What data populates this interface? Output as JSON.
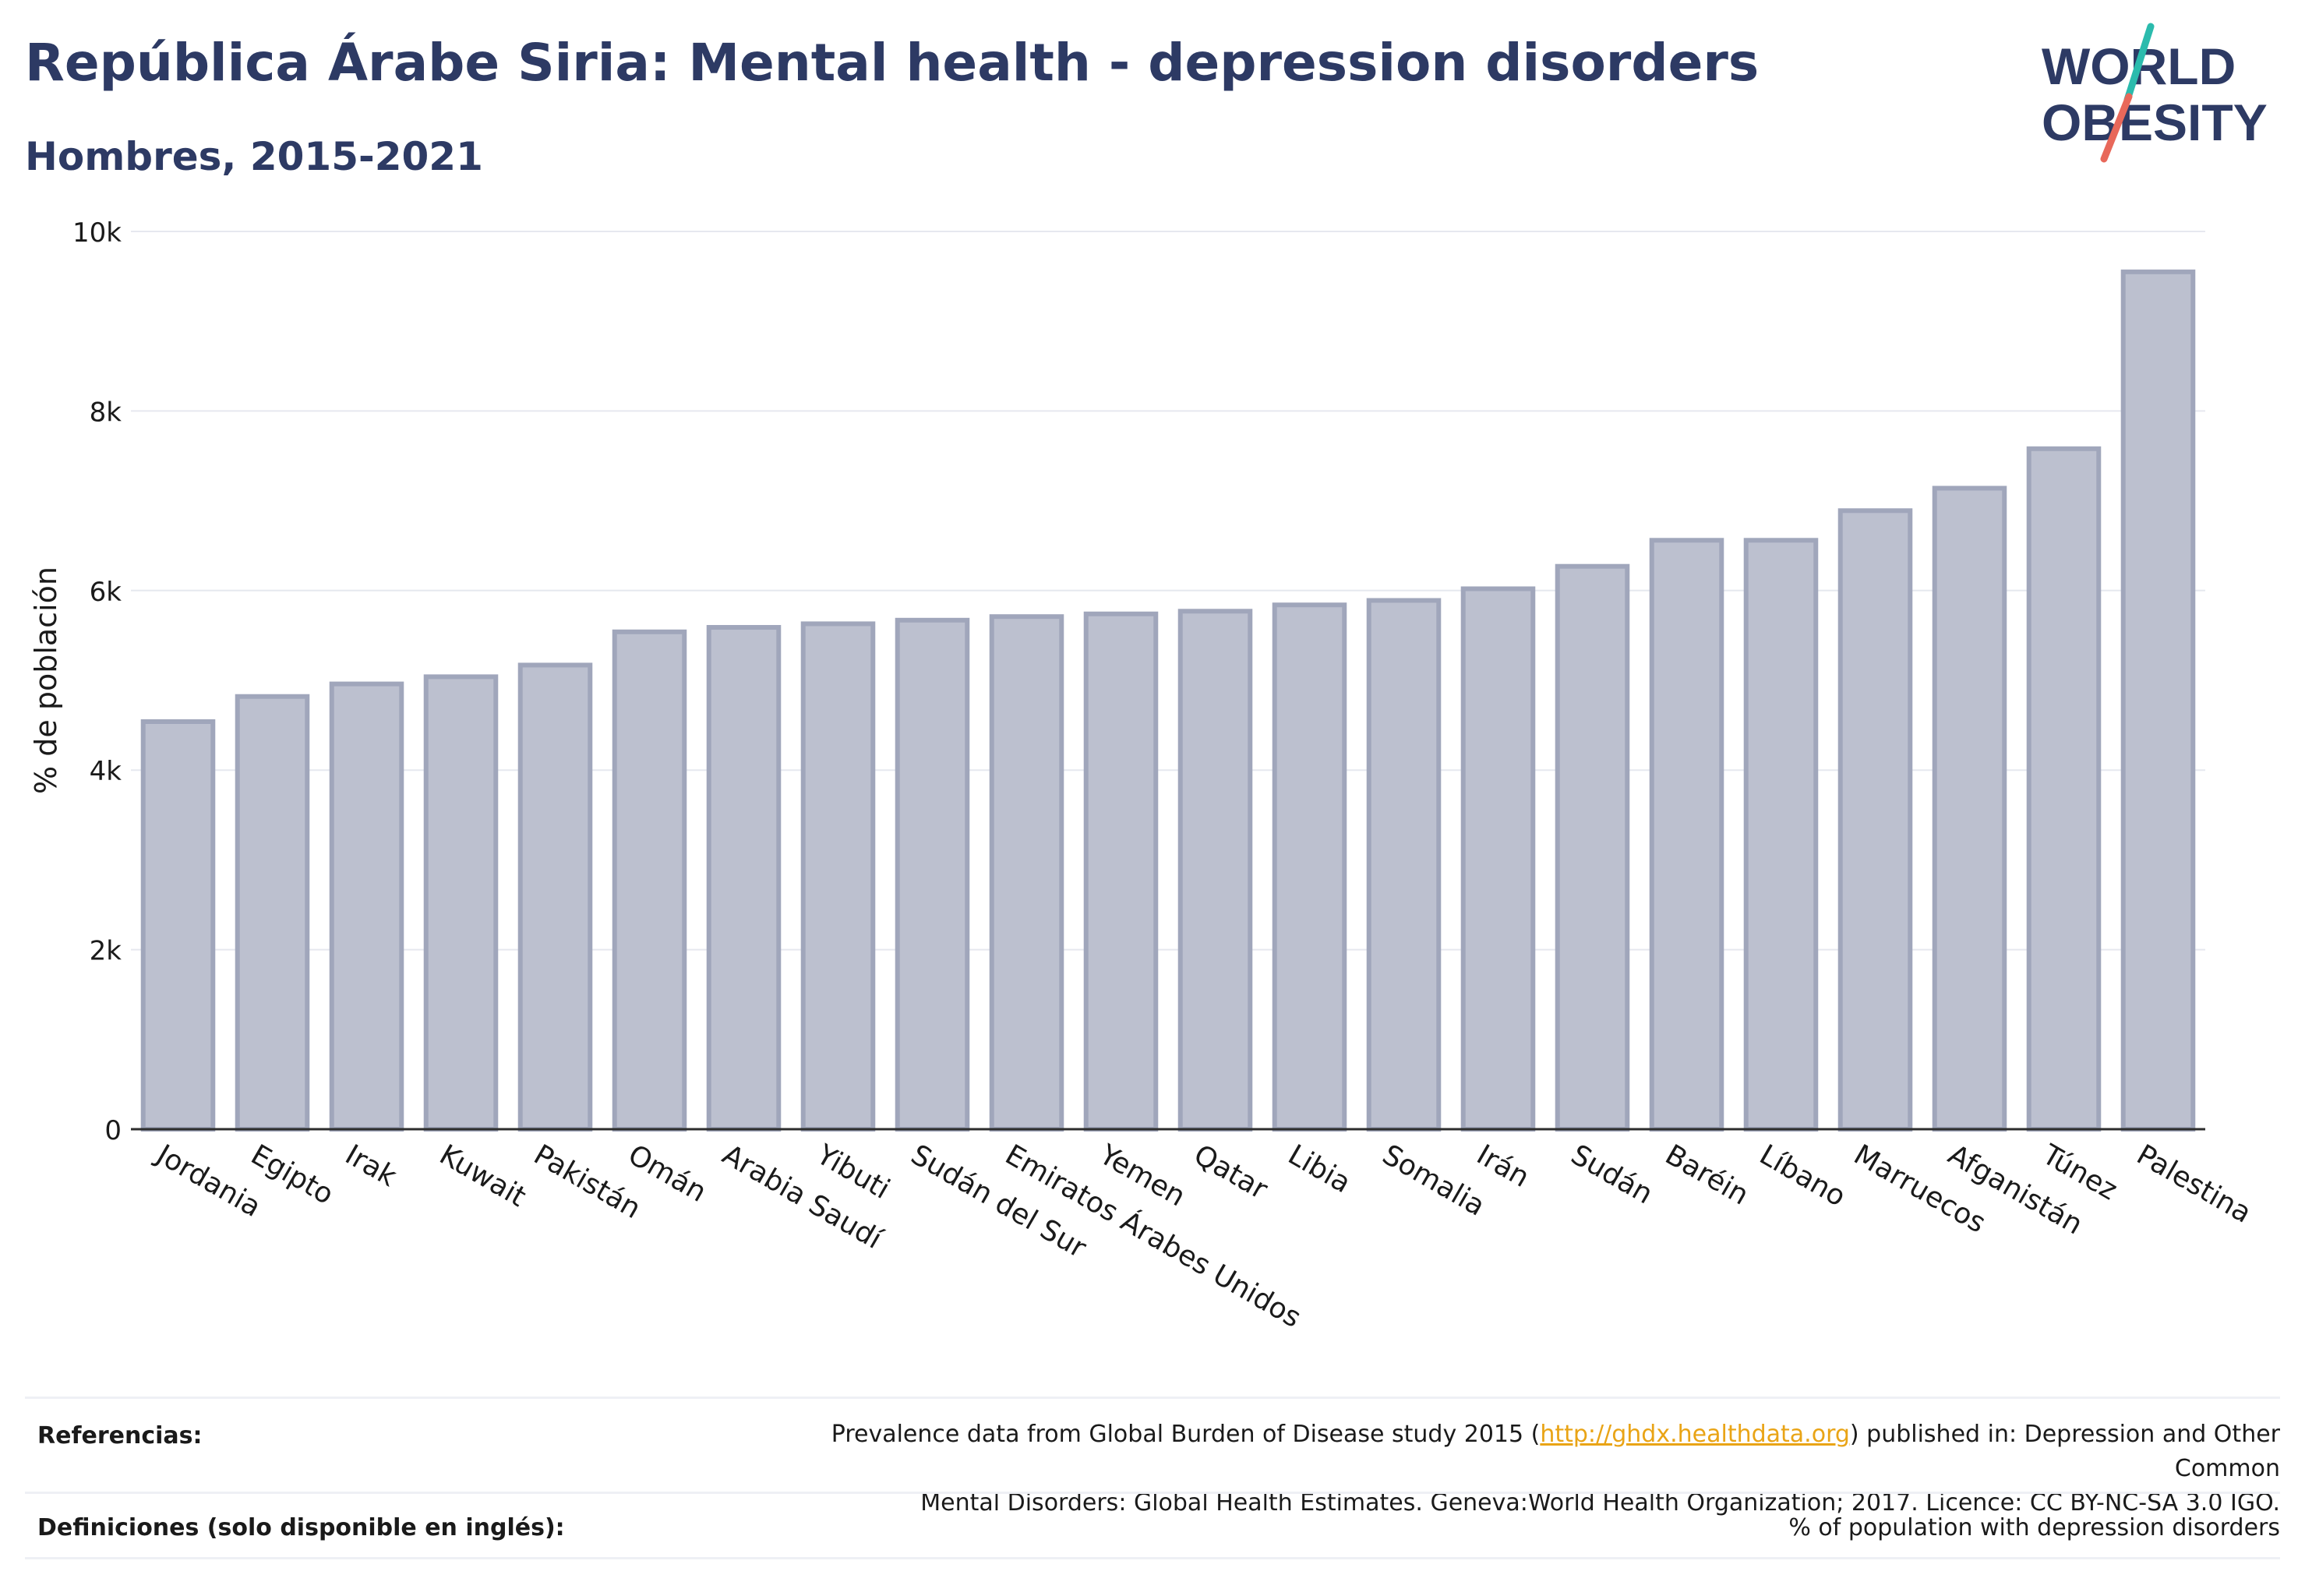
{
  "header": {
    "title": "República Árabe Siria: Mental health - depression disorders",
    "subtitle": "Hombres, 2015-2021"
  },
  "logo": {
    "line1": "WORLD",
    "line2": "OBESITY",
    "text_color": "#2d3a64",
    "slash_top": "#2bbbad",
    "slash_bottom": "#e8685a"
  },
  "chart_data": {
    "type": "bar",
    "categories": [
      "Jordania",
      "Egipto",
      "Irak",
      "Kuwait",
      "Pakistán",
      "Omán",
      "Arabia Saudí",
      "Yibuti",
      "Sudán del Sur",
      "Emiratos Árabes Unidos",
      "Yemen",
      "Qatar",
      "Libia",
      "Somalia",
      "Irán",
      "Sudán",
      "Baréin",
      "Líbano",
      "Marruecos",
      "Afganistán",
      "Túnez",
      "Palestina"
    ],
    "values": [
      4540,
      4820,
      4960,
      5040,
      5170,
      5540,
      5590,
      5630,
      5670,
      5710,
      5740,
      5770,
      5840,
      5890,
      6020,
      6270,
      6560,
      6560,
      6890,
      7140,
      7580,
      9550
    ],
    "ylabel": "% de población",
    "xlabel": "",
    "ylim": [
      0,
      10000
    ],
    "yticks": [
      0,
      2000,
      4000,
      6000,
      8000,
      10000
    ],
    "ytick_labels": [
      "0",
      "2k",
      "4k",
      "6k",
      "8k",
      "10k"
    ],
    "grid": true,
    "bar_fill": "#bcc0cf",
    "bar_stroke": "#a0a6bb"
  },
  "footer": {
    "references_label": "Referencias:",
    "references_text_1": "Prevalence data from Global Burden of Disease study 2015 (",
    "references_link": "http://ghdx.healthdata.org",
    "references_text_2": ") published in: Depression and Other Common",
    "references_text_3": "Mental Disorders: Global Health Estimates. Geneva:World Health Organization; 2017. Licence: CC BY-NC-SA 3.0 IGO.",
    "definitions_label": "Definiciones (solo disponible en inglés):",
    "definitions_text": "% of population with depression disorders"
  }
}
